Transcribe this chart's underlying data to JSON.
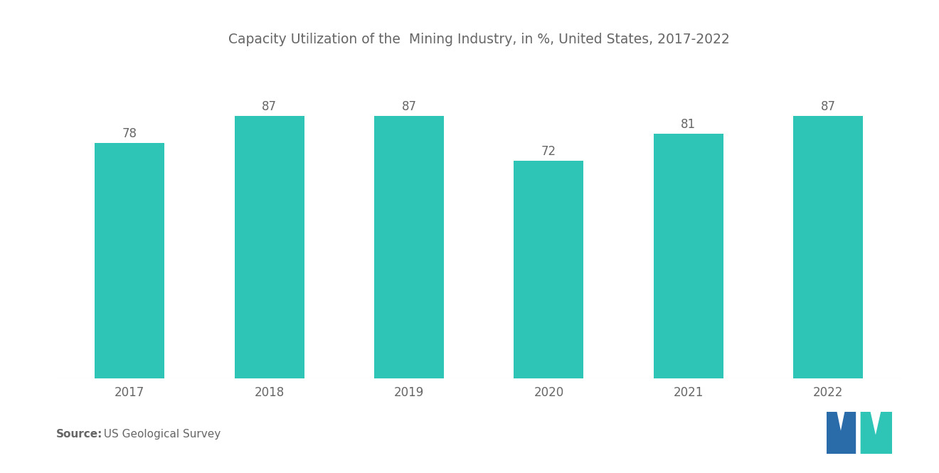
{
  "title": "Capacity Utilization of the  Mining Industry, in %, United States, 2017-2022",
  "categories": [
    "2017",
    "2018",
    "2019",
    "2020",
    "2021",
    "2022"
  ],
  "values": [
    78,
    87,
    87,
    72,
    81,
    87
  ],
  "bar_color": "#2EC4B6",
  "background_color": "#ffffff",
  "title_fontsize": 13.5,
  "value_fontsize": 12,
  "tick_fontsize": 12,
  "source_bold": "Source:",
  "source_rest": "  US Geological Survey",
  "source_fontsize": 11,
  "ylim": [
    0,
    105
  ],
  "bar_width": 0.5,
  "logo_blue": "#2a6caa",
  "logo_teal": "#2EC4B6"
}
